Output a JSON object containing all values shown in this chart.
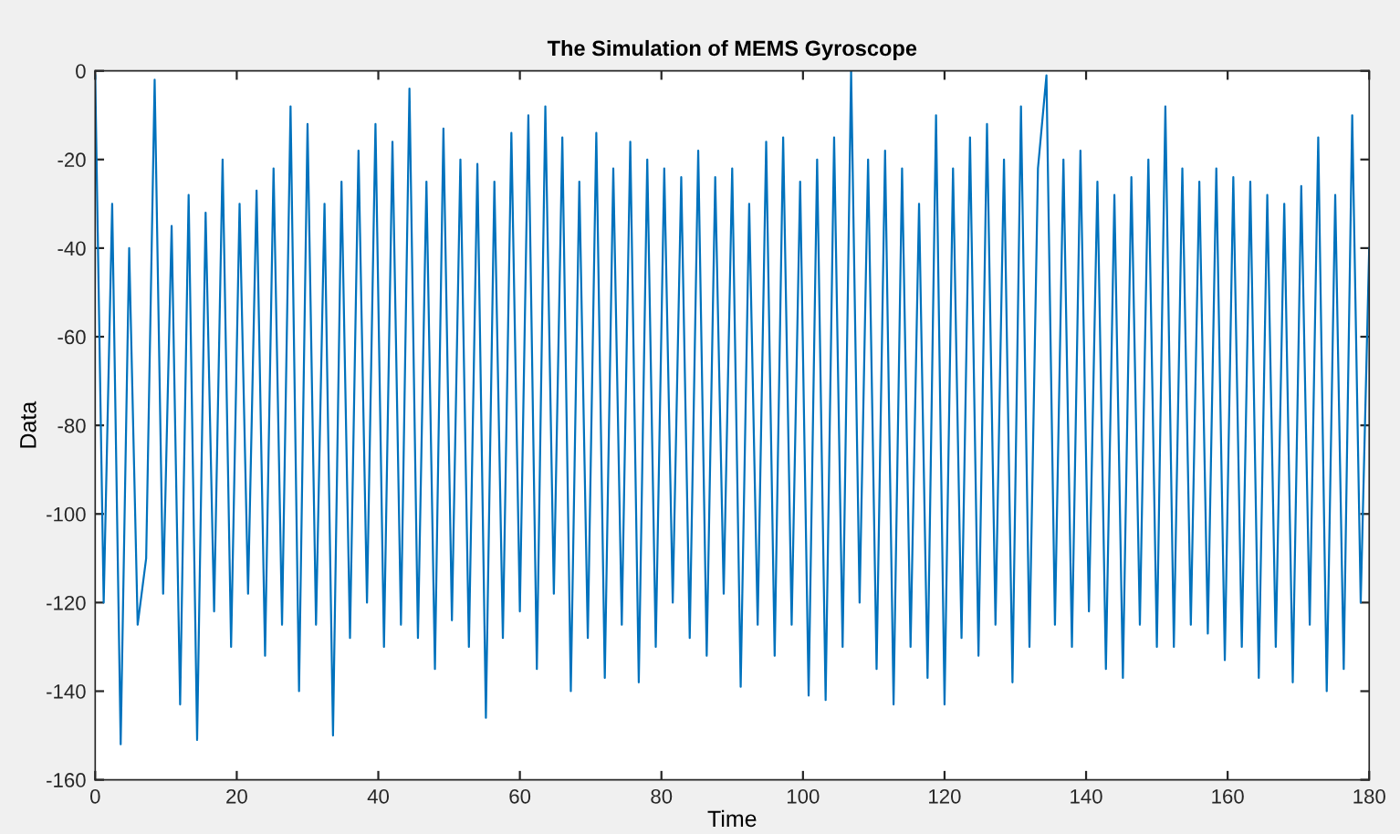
{
  "chart_data": {
    "type": "line",
    "title": "The Simulation of MEMS Gyroscope",
    "xlabel": "Time",
    "ylabel": "Data",
    "x": [
      0,
      1.2,
      2.4,
      3.6,
      4.8,
      6,
      7.2,
      8.4,
      9.6,
      10.8,
      12,
      13.2,
      14.4,
      15.6,
      16.8,
      18,
      19.2,
      20.4,
      21.6,
      22.8,
      24,
      25.2,
      26.4,
      27.6,
      28.8,
      30,
      31.2,
      32.4,
      33.6,
      34.8,
      36,
      37.2,
      38.4,
      39.6,
      40.8,
      42,
      43.2,
      44.4,
      45.6,
      46.8,
      48,
      49.2,
      50.4,
      51.6,
      52.8,
      54,
      55.2,
      56.4,
      57.6,
      58.8,
      60,
      61.2,
      62.4,
      63.6,
      64.8,
      66,
      67.2,
      68.4,
      69.6,
      70.8,
      72,
      73.2,
      74.4,
      75.6,
      76.8,
      78,
      79.2,
      80.4,
      81.6,
      82.8,
      84,
      85.2,
      86.4,
      87.6,
      88.8,
      90,
      91.2,
      92.4,
      93.6,
      94.8,
      96,
      97.2,
      98.4,
      99.6,
      100.8,
      102,
      103.2,
      104.4,
      105.6,
      106.8,
      108,
      109.2,
      110.4,
      111.6,
      112.8,
      114,
      115.2,
      116.4,
      117.6,
      118.8,
      120,
      121.2,
      122.4,
      123.6,
      124.8,
      126,
      127.2,
      128.4,
      129.6,
      130.8,
      132,
      133.2,
      134.4,
      135.6,
      136.8,
      138,
      139.2,
      140.4,
      141.6,
      142.8,
      144,
      145.2,
      146.4,
      147.6,
      148.8,
      150,
      151.2,
      152.4,
      153.6,
      154.8,
      156,
      157.2,
      158.4,
      159.6,
      160.8,
      162,
      163.2,
      164.4,
      165.6,
      166.8,
      168,
      169.2,
      170.4,
      171.6,
      172.8,
      174,
      175.2,
      176.4,
      177.6,
      178.8,
      180
    ],
    "series": [
      {
        "color": "#0072bd",
        "values": [
          -1,
          -120,
          -30,
          -152,
          -40,
          -125,
          -110,
          -2,
          -118,
          -35,
          -143,
          -28,
          -151,
          -32,
          -122,
          -20,
          -130,
          -30,
          -118,
          -27,
          -132,
          -22,
          -125,
          -8,
          -140,
          -12,
          -125,
          -30,
          -150,
          -25,
          -128,
          -18,
          -120,
          -12,
          -130,
          -16,
          -125,
          -4,
          -128,
          -25,
          -135,
          -13,
          -124,
          -20,
          -130,
          -21,
          -146,
          -25,
          -128,
          -14,
          -122,
          -10,
          -135,
          -8,
          -118,
          -15,
          -140,
          -25,
          -128,
          -14,
          -137,
          -22,
          -125,
          -16,
          -138,
          -20,
          -130,
          -22,
          -120,
          -24,
          -128,
          -18,
          -132,
          -24,
          -118,
          -22,
          -139,
          -30,
          -125,
          -16,
          -132,
          -15,
          -125,
          -25,
          -141,
          -20,
          -142,
          -15,
          -130,
          0,
          -120,
          -20,
          -135,
          -18,
          -143,
          -22,
          -130,
          -30,
          -137,
          -10,
          -143,
          -22,
          -128,
          -15,
          -132,
          -12,
          -125,
          -20,
          -138,
          -8,
          -130,
          -22,
          -1,
          -125,
          -20,
          -130,
          -18,
          -122,
          -25,
          -135,
          -28,
          -137,
          -24,
          -125,
          -20,
          -130,
          -8,
          -130,
          -22,
          -125,
          -25,
          -127,
          -22,
          -133,
          -24,
          -130,
          -25,
          -137,
          -28,
          -130,
          -30,
          -138,
          -26,
          -125,
          -15,
          -140,
          -28,
          -135,
          -10,
          -120,
          -40
        ]
      }
    ],
    "xlim": [
      0,
      180
    ],
    "xticks": [
      0,
      20,
      40,
      60,
      80,
      100,
      120,
      140,
      160,
      180
    ],
    "ylim": [
      -160,
      0
    ],
    "yticks": [
      -160,
      -140,
      -120,
      -100,
      -80,
      -60,
      -40,
      -20,
      0
    ],
    "grid": false,
    "legend": false
  }
}
